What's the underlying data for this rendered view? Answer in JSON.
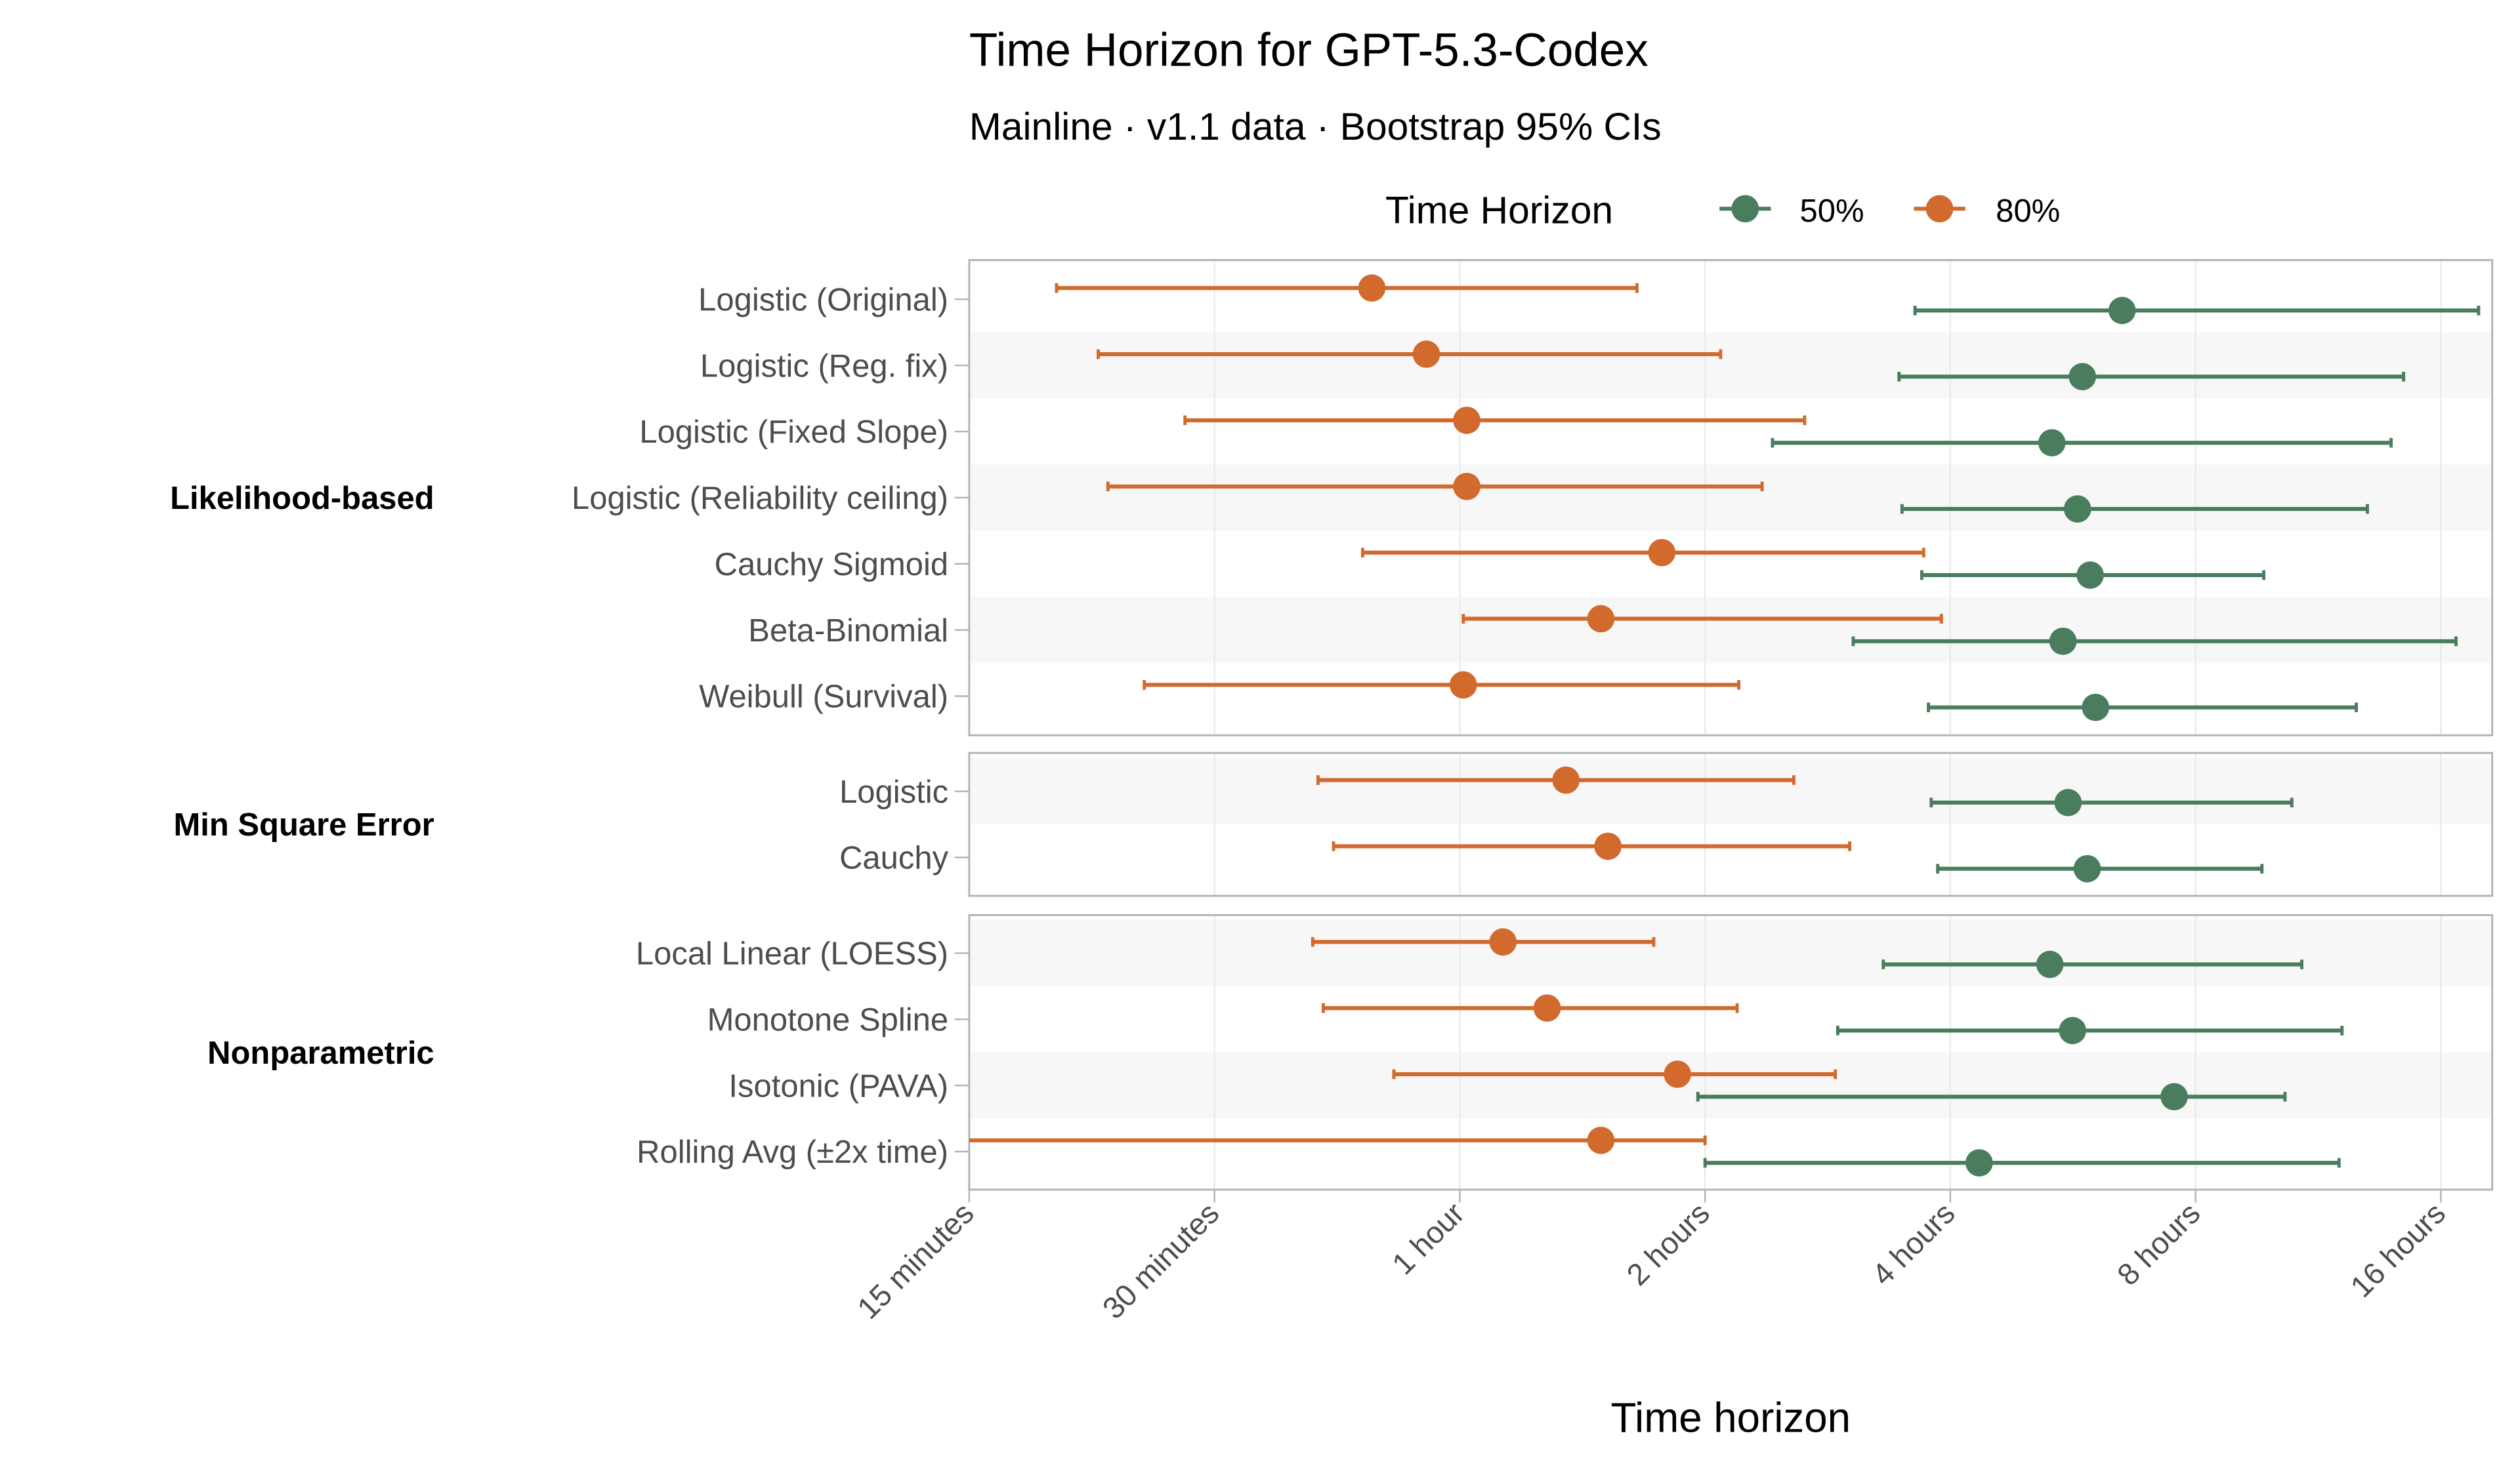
{
  "chart_data": {
    "type": "dot-errorbar",
    "title": "Time Horizon for GPT-5.3-Codex",
    "subtitle": "Mainline · v1.1 data · Bootstrap 95% CIs",
    "xlabel": "Time horizon",
    "ylabel": "",
    "x_scale": "log2",
    "x_unit": "hours",
    "xlim": [
      0.25,
      18.5
    ],
    "x_ticks": [
      {
        "value": 0.25,
        "label": "15 minutes"
      },
      {
        "value": 0.5,
        "label": "30 minutes"
      },
      {
        "value": 1,
        "label": "1 hour"
      },
      {
        "value": 2,
        "label": "2 hours"
      },
      {
        "value": 4,
        "label": "4 hours"
      },
      {
        "value": 8,
        "label": "8 hours"
      },
      {
        "value": 16,
        "label": "16 hours"
      }
    ],
    "grid": true,
    "legend": {
      "title": "Time Horizon",
      "placement": "top",
      "entries": [
        {
          "label": "50%",
          "color": "#4a7c5e"
        },
        {
          "label": "80%",
          "color": "#d2692d"
        }
      ]
    },
    "groups": [
      {
        "name": "Likelihood-based",
        "rows": [
          {
            "label": "Logistic (Original)",
            "p50": [
              6.5,
              3.62,
              17.8
            ],
            "p80": [
              0.78,
              0.32,
              1.65
            ]
          },
          {
            "label": "Logistic (Reg. fix)",
            "p50": [
              5.81,
              3.46,
              14.4
            ],
            "p80": [
              0.91,
              0.36,
              2.09
            ]
          },
          {
            "label": "Logistic (Fixed Slope)",
            "p50": [
              5.33,
              2.42,
              13.9
            ],
            "p80": [
              1.02,
              0.46,
              2.65
            ]
          },
          {
            "label": "Logistic (Reliability ceiling)",
            "p50": [
              5.73,
              3.49,
              13.0
            ],
            "p80": [
              1.02,
              0.37,
              2.35
            ]
          },
          {
            "label": "Cauchy Sigmoid",
            "p50": [
              5.94,
              3.69,
              9.7
            ],
            "p80": [
              1.77,
              0.76,
              3.71
            ]
          },
          {
            "label": "Beta-Binomial",
            "p50": [
              5.5,
              3.04,
              16.7
            ],
            "p80": [
              1.49,
              1.01,
              3.9
            ]
          },
          {
            "label": "Weibull (Survival)",
            "p50": [
              6.03,
              3.76,
              12.6
            ],
            "p80": [
              1.01,
              0.41,
              2.2
            ]
          }
        ]
      },
      {
        "name": "Min Square Error",
        "rows": [
          {
            "label": "Logistic",
            "p50": [
              5.58,
              3.79,
              10.5
            ],
            "p80": [
              1.35,
              0.67,
              2.57
            ]
          },
          {
            "label": "Cauchy",
            "p50": [
              5.89,
              3.86,
              9.65
            ],
            "p80": [
              1.52,
              0.7,
              3.01
            ]
          }
        ]
      },
      {
        "name": "Nonparametric",
        "rows": [
          {
            "label": "Local Linear (LOESS)",
            "p50": [
              5.3,
              3.31,
              10.8
            ],
            "p80": [
              1.13,
              0.66,
              1.73
            ]
          },
          {
            "label": "Monotone Spline",
            "p50": [
              5.65,
              2.91,
              12.1
            ],
            "p80": [
              1.28,
              0.68,
              2.19
            ]
          },
          {
            "label": "Isotonic (PAVA)",
            "p50": [
              7.53,
              1.96,
              10.3
            ],
            "p80": [
              1.85,
              0.83,
              2.89
            ]
          },
          {
            "label": "Rolling Avg (±2x time)",
            "p50": [
              4.34,
              2.0,
              12.0
            ],
            "p80": [
              1.49,
              0.25,
              2.0
            ]
          }
        ]
      }
    ]
  }
}
